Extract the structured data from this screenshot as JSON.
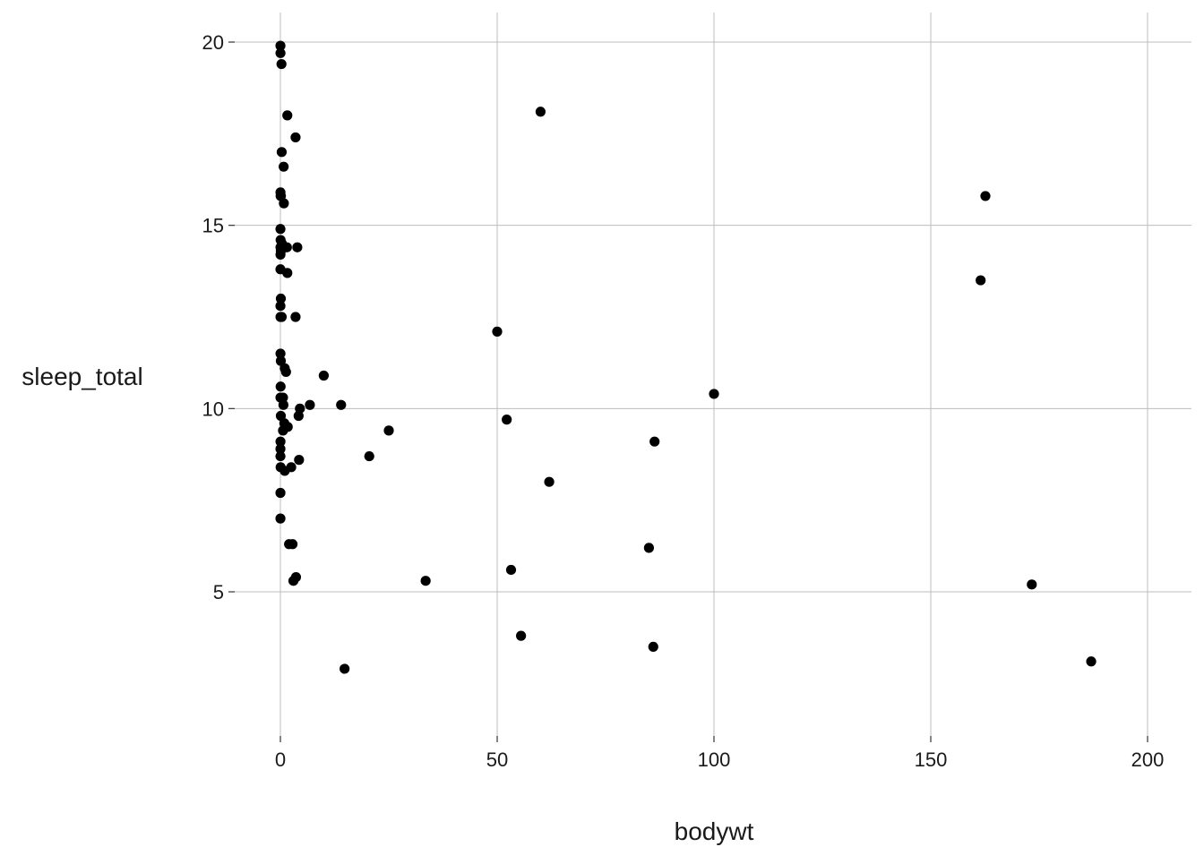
{
  "chart_data": {
    "type": "scatter",
    "title": "",
    "xlabel": "bodywt",
    "ylabel": "sleep_total",
    "xlim": [
      0,
      200
    ],
    "ylim": [
      1.3,
      20.8
    ],
    "x_ticks": [
      0,
      50,
      100,
      150,
      200
    ],
    "y_ticks": [
      5,
      10,
      15,
      20
    ],
    "x_tick_labels": [
      "0",
      "50",
      "100",
      "150",
      "200"
    ],
    "y_tick_labels": [
      "5",
      "10",
      "15",
      "20"
    ],
    "grid": true,
    "legend": "none",
    "point_color": "#000000",
    "points": [
      {
        "x": 0.01,
        "y": 19.9
      },
      {
        "x": 0.02,
        "y": 19.7
      },
      {
        "x": 0.25,
        "y": 19.4
      },
      {
        "x": 1.6,
        "y": 18.0
      },
      {
        "x": 3.5,
        "y": 17.4
      },
      {
        "x": 0.3,
        "y": 17.0
      },
      {
        "x": 0.75,
        "y": 16.6
      },
      {
        "x": 0.02,
        "y": 15.9
      },
      {
        "x": 0.05,
        "y": 15.8
      },
      {
        "x": 0.12,
        "y": 15.8
      },
      {
        "x": 0.8,
        "y": 15.6
      },
      {
        "x": 0.01,
        "y": 14.9
      },
      {
        "x": 0.05,
        "y": 14.6
      },
      {
        "x": 0.35,
        "y": 14.5
      },
      {
        "x": 0.02,
        "y": 14.4
      },
      {
        "x": 1.5,
        "y": 14.4
      },
      {
        "x": 3.9,
        "y": 14.4
      },
      {
        "x": 0.1,
        "y": 14.3
      },
      {
        "x": 0.02,
        "y": 14.2
      },
      {
        "x": 0.01,
        "y": 13.8
      },
      {
        "x": 1.6,
        "y": 13.7
      },
      {
        "x": 0.1,
        "y": 13.0
      },
      {
        "x": 0.01,
        "y": 12.8
      },
      {
        "x": 0.02,
        "y": 12.5
      },
      {
        "x": 0.3,
        "y": 12.5
      },
      {
        "x": 3.5,
        "y": 12.5
      },
      {
        "x": 0.02,
        "y": 11.5
      },
      {
        "x": 0.1,
        "y": 11.3
      },
      {
        "x": 1.0,
        "y": 11.1
      },
      {
        "x": 1.3,
        "y": 11.0
      },
      {
        "x": 10.0,
        "y": 10.9
      },
      {
        "x": 0.05,
        "y": 10.6
      },
      {
        "x": 0.01,
        "y": 10.3
      },
      {
        "x": 0.6,
        "y": 10.3
      },
      {
        "x": 0.7,
        "y": 10.1
      },
      {
        "x": 6.8,
        "y": 10.1
      },
      {
        "x": 14.0,
        "y": 10.1
      },
      {
        "x": 4.5,
        "y": 10.0
      },
      {
        "x": 0.1,
        "y": 9.8
      },
      {
        "x": 4.2,
        "y": 9.8
      },
      {
        "x": 0.9,
        "y": 9.6
      },
      {
        "x": 1.7,
        "y": 9.5
      },
      {
        "x": 0.6,
        "y": 9.4
      },
      {
        "x": 25.0,
        "y": 9.4
      },
      {
        "x": 0.02,
        "y": 9.1
      },
      {
        "x": 0.01,
        "y": 8.9
      },
      {
        "x": 0.01,
        "y": 8.7
      },
      {
        "x": 20.5,
        "y": 8.7
      },
      {
        "x": 4.3,
        "y": 8.6
      },
      {
        "x": 0.05,
        "y": 8.4
      },
      {
        "x": 2.5,
        "y": 8.4
      },
      {
        "x": 1.0,
        "y": 8.3
      },
      {
        "x": 0.01,
        "y": 7.7
      },
      {
        "x": 0.01,
        "y": 7.0
      },
      {
        "x": 2.0,
        "y": 6.3
      },
      {
        "x": 2.8,
        "y": 6.3
      },
      {
        "x": 3.6,
        "y": 5.4
      },
      {
        "x": 3.0,
        "y": 5.3
      },
      {
        "x": 33.5,
        "y": 5.3
      },
      {
        "x": 14.8,
        "y": 2.9
      },
      {
        "x": 60.0,
        "y": 18.1
      },
      {
        "x": 50.0,
        "y": 12.1
      },
      {
        "x": 52.2,
        "y": 9.7
      },
      {
        "x": 62.0,
        "y": 8.0
      },
      {
        "x": 53.2,
        "y": 5.6
      },
      {
        "x": 55.5,
        "y": 3.8
      },
      {
        "x": 100.0,
        "y": 10.4
      },
      {
        "x": 86.3,
        "y": 9.1
      },
      {
        "x": 85.0,
        "y": 6.2
      },
      {
        "x": 86.0,
        "y": 3.5
      },
      {
        "x": 162.6,
        "y": 15.8
      },
      {
        "x": 161.5,
        "y": 13.5
      },
      {
        "x": 173.3,
        "y": 5.2
      },
      {
        "x": 187.0,
        "y": 3.1
      }
    ]
  }
}
